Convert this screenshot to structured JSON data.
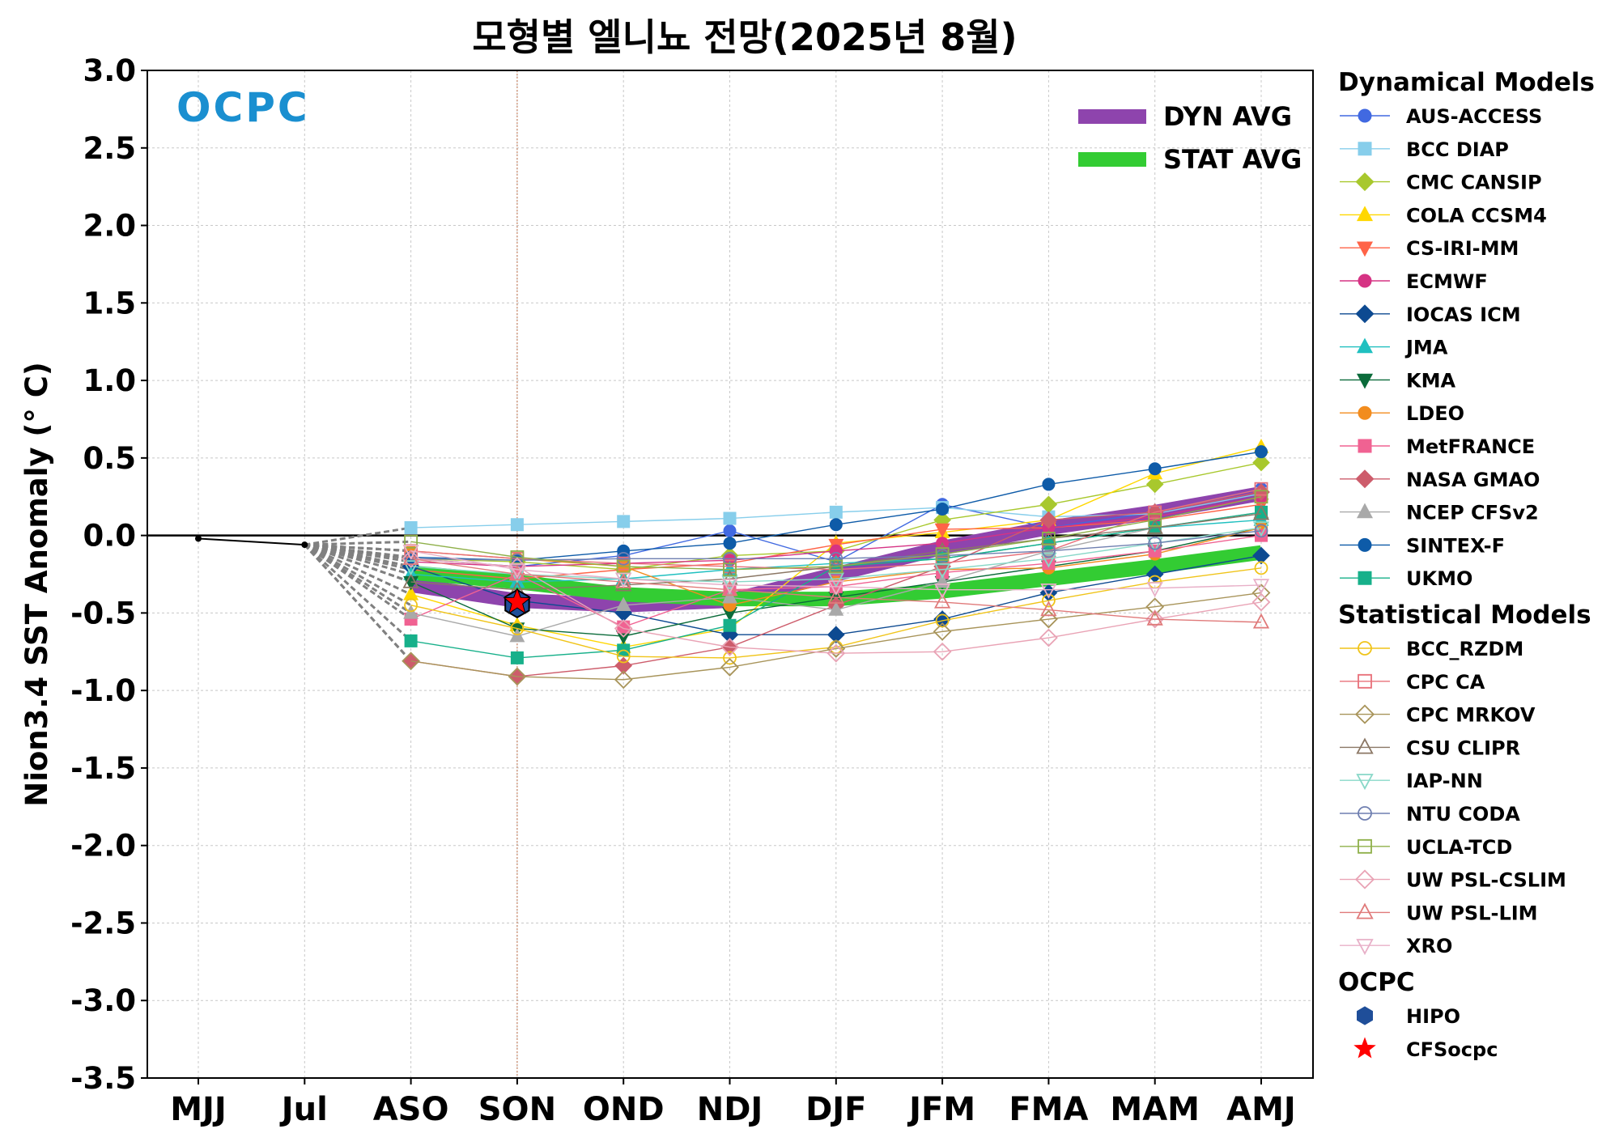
{
  "chart_data": {
    "type": "line",
    "title": "모형별 엘니뇨 전망(2025년 8월)",
    "ylabel": "Nion3.4 SST Anomaly (° C)",
    "xlabel": "",
    "categories": [
      "MJJ",
      "Jul",
      "ASO",
      "SON",
      "OND",
      "NDJ",
      "DJF",
      "JFM",
      "FMA",
      "MAM",
      "AMJ"
    ],
    "ylim": [
      -3.5,
      3.0
    ],
    "yticks": [
      "3.0",
      "2.5",
      "2.0",
      "1.5",
      "1.0",
      "0.5",
      "0.0",
      "-0.5",
      "-1.0",
      "-1.5",
      "-2.0",
      "-2.5",
      "-3.0",
      "-3.5"
    ],
    "grid": true,
    "forecast_start_marker": "SON",
    "logo": "OCPC",
    "observed": {
      "values": [
        -0.02,
        -0.06
      ]
    },
    "averages": [
      {
        "name": "DYN AVG",
        "color": "#8e44ad",
        "values": [
          null,
          null,
          -0.32,
          -0.42,
          -0.45,
          -0.42,
          -0.25,
          -0.08,
          0.05,
          0.15,
          0.27
        ]
      },
      {
        "name": "STAT AVG",
        "color": "#33cc33",
        "values": [
          null,
          null,
          -0.24,
          -0.3,
          -0.38,
          -0.41,
          -0.41,
          -0.36,
          -0.28,
          -0.2,
          -0.11
        ]
      }
    ],
    "legend_groups": [
      {
        "title": "Dynamical Models",
        "series": [
          {
            "name": "AUS-ACCESS",
            "color": "#4169e1",
            "marker": "circle",
            "filled": true,
            "values": [
              null,
              null,
              -0.15,
              -0.2,
              -0.13,
              0.03,
              -0.17,
              0.2,
              0.05,
              0.15,
              0.3
            ]
          },
          {
            "name": "BCC DIAP",
            "color": "#87ceeb",
            "marker": "square",
            "filled": true,
            "values": [
              null,
              null,
              0.05,
              0.07,
              0.09,
              0.11,
              0.15,
              0.18,
              0.12,
              0.14,
              0.27
            ]
          },
          {
            "name": "CMC CANSIP",
            "color": "#a8c82d",
            "marker": "diamond",
            "filled": true,
            "values": [
              null,
              null,
              -0.15,
              -0.17,
              -0.22,
              -0.13,
              -0.1,
              0.1,
              0.2,
              0.33,
              0.47
            ]
          },
          {
            "name": "COLA CCSM4",
            "color": "#ffd700",
            "marker": "triangle-up",
            "filled": true,
            "values": [
              null,
              null,
              -0.38,
              -0.58,
              -0.72,
              -0.6,
              -0.05,
              0.02,
              0.1,
              0.4,
              0.57
            ]
          },
          {
            "name": "CS-IRI-MM",
            "color": "#ff6347",
            "marker": "triangle-down",
            "filled": true,
            "values": [
              null,
              null,
              -0.22,
              -0.28,
              -0.22,
              -0.18,
              -0.06,
              0.04,
              0.05,
              0.1,
              0.2
            ]
          },
          {
            "name": "ECMWF",
            "color": "#d63384",
            "marker": "circle",
            "filled": true,
            "values": [
              null,
              null,
              -0.17,
              -0.2,
              -0.18,
              -0.16,
              -0.1,
              -0.05,
              0.05,
              0.12,
              0.25
            ]
          },
          {
            "name": "IOCAS ICM",
            "color": "#0d4a91",
            "marker": "diamond",
            "filled": true,
            "values": [
              null,
              null,
              -0.2,
              -0.42,
              -0.5,
              -0.64,
              -0.64,
              -0.54,
              -0.37,
              -0.25,
              -0.13
            ]
          },
          {
            "name": "JMA",
            "color": "#20c0c0",
            "marker": "triangle-up",
            "filled": true,
            "values": [
              null,
              null,
              -0.25,
              -0.3,
              -0.28,
              -0.22,
              -0.18,
              -0.15,
              -0.05,
              0.05,
              0.1
            ]
          },
          {
            "name": "KMA",
            "color": "#0b6b3a",
            "marker": "triangle-down",
            "filled": true,
            "values": [
              null,
              null,
              -0.3,
              -0.6,
              -0.65,
              -0.5,
              -0.4,
              -0.3,
              -0.2,
              -0.1,
              0.05
            ]
          },
          {
            "name": "LDEO",
            "color": "#f28c1e",
            "marker": "circle",
            "filled": true,
            "values": [
              null,
              null,
              -0.1,
              -0.15,
              -0.2,
              -0.45,
              -0.3,
              -0.22,
              -0.21,
              -0.12,
              0.05
            ]
          },
          {
            "name": "MetFRANCE",
            "color": "#f06292",
            "marker": "square",
            "filled": true,
            "values": [
              null,
              null,
              -0.54,
              -0.25,
              -0.59,
              -0.35,
              -0.33,
              -0.24,
              -0.18,
              -0.1,
              0.0
            ]
          },
          {
            "name": "NASA GMAO",
            "color": "#cd5c6b",
            "marker": "diamond",
            "filled": true,
            "values": [
              null,
              null,
              -0.81,
              -0.91,
              -0.84,
              -0.72,
              -0.45,
              -0.2,
              0.1,
              0.15,
              0.28
            ]
          },
          {
            "name": "NCEP CFSv2",
            "color": "#a9a9a9",
            "marker": "triangle-up",
            "filled": true,
            "values": [
              null,
              null,
              -0.5,
              -0.65,
              -0.45,
              -0.4,
              -0.48,
              -0.3,
              -0.1,
              0.05,
              0.15
            ]
          },
          {
            "name": "SINTEX-F",
            "color": "#0e5ba8",
            "marker": "circle",
            "filled": true,
            "values": [
              null,
              null,
              -0.14,
              -0.16,
              -0.1,
              -0.05,
              0.07,
              0.17,
              0.33,
              0.43,
              0.54
            ]
          },
          {
            "name": "UKMO",
            "color": "#17b08a",
            "marker": "square",
            "filled": true,
            "values": [
              null,
              null,
              -0.68,
              -0.79,
              -0.74,
              -0.58,
              -0.2,
              -0.15,
              -0.05,
              0.05,
              0.15
            ]
          }
        ]
      },
      {
        "title": "Statistical Models",
        "series": [
          {
            "name": "BCC_RZDM",
            "color": "#f0c419",
            "marker": "circle",
            "filled": false,
            "values": [
              null,
              null,
              -0.45,
              -0.6,
              -0.78,
              -0.79,
              -0.72,
              -0.55,
              -0.42,
              -0.3,
              -0.21
            ]
          },
          {
            "name": "CPC CA",
            "color": "#e8707a",
            "marker": "square",
            "filled": false,
            "values": [
              null,
              null,
              -0.1,
              -0.15,
              -0.18,
              -0.2,
              -0.22,
              -0.18,
              -0.1,
              0.15,
              0.3
            ]
          },
          {
            "name": "CPC MRKOV",
            "color": "#a8945a",
            "marker": "diamond",
            "filled": false,
            "values": [
              null,
              null,
              -0.81,
              -0.91,
              -0.93,
              -0.85,
              -0.73,
              -0.62,
              -0.54,
              -0.46,
              -0.37
            ]
          },
          {
            "name": "CSU CLIPR",
            "color": "#8b7765",
            "marker": "triangle-up",
            "filled": false,
            "values": [
              null,
              null,
              -0.3,
              -0.35,
              -0.32,
              -0.28,
              -0.2,
              -0.1,
              -0.02,
              0.05,
              0.14
            ]
          },
          {
            "name": "IAP-NN",
            "color": "#88d8c8",
            "marker": "triangle-down",
            "filled": false,
            "values": [
              null,
              null,
              -0.2,
              -0.25,
              -0.28,
              -0.3,
              -0.28,
              -0.22,
              -0.15,
              -0.05,
              0.05
            ]
          },
          {
            "name": "NTU CODA",
            "color": "#6f7fb0",
            "marker": "circle",
            "filled": false,
            "values": [
              null,
              null,
              -0.15,
              -0.16,
              -0.15,
              -0.15,
              -0.15,
              -0.13,
              -0.1,
              -0.05,
              0.03
            ]
          },
          {
            "name": "UCLA-TCD",
            "color": "#8fb04a",
            "marker": "square",
            "filled": false,
            "values": [
              null,
              null,
              -0.04,
              -0.14,
              -0.2,
              -0.22,
              -0.2,
              -0.12,
              -0.02,
              0.1,
              0.25
            ]
          },
          {
            "name": "UW PSL-CSLIM",
            "color": "#e9a3b5",
            "marker": "diamond",
            "filled": false,
            "values": [
              null,
              null,
              -0.15,
              -0.2,
              -0.6,
              -0.72,
              -0.76,
              -0.75,
              -0.66,
              -0.54,
              -0.43
            ]
          },
          {
            "name": "UW PSL-LIM",
            "color": "#e07a7a",
            "marker": "triangle-up",
            "filled": false,
            "values": [
              null,
              null,
              -0.15,
              -0.25,
              -0.3,
              -0.35,
              -0.4,
              -0.43,
              -0.48,
              -0.54,
              -0.56
            ]
          },
          {
            "name": "XRO",
            "color": "#e8b0c8",
            "marker": "triangle-down",
            "filled": false,
            "values": [
              null,
              null,
              -0.1,
              -0.22,
              -0.28,
              -0.32,
              -0.33,
              -0.35,
              -0.35,
              -0.34,
              -0.32
            ]
          }
        ]
      },
      {
        "title": "OCPC",
        "series": [
          {
            "name": "HIPO",
            "color": "#1f4e99",
            "marker": "hexagon",
            "filled": true,
            "values": [
              null,
              null,
              null,
              -0.44,
              null,
              null,
              null,
              null,
              null,
              null,
              null
            ]
          },
          {
            "name": "CFSocpc",
            "color": "#ff0000",
            "marker": "star",
            "filled": true,
            "values": [
              null,
              null,
              null,
              -0.43,
              null,
              null,
              null,
              null,
              null,
              null,
              null
            ]
          }
        ]
      }
    ]
  }
}
